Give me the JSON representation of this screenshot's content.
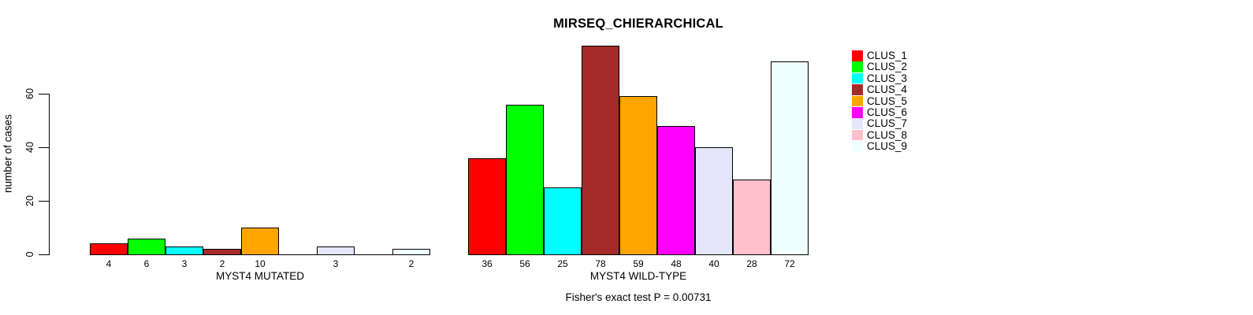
{
  "chart_data": {
    "type": "bar",
    "title": "MIRSEQ_CHIERARCHICAL",
    "ylabel": "number of cases",
    "annotation": "Fisher's exact test P = 0.00731",
    "yticks": [
      0,
      20,
      40,
      60
    ],
    "ylim": [
      0,
      78
    ],
    "grid": false,
    "legend_position": "right",
    "clusters": [
      {
        "label": "CLUS_1",
        "color": "#FF0000"
      },
      {
        "label": "CLUS_2",
        "color": "#00FF00"
      },
      {
        "label": "CLUS_3",
        "color": "#00FFFF"
      },
      {
        "label": "CLUS_4",
        "color": "#A52A2A"
      },
      {
        "label": "CLUS_5",
        "color": "#FFA500"
      },
      {
        "label": "CLUS_6",
        "color": "#FF00FF"
      },
      {
        "label": "CLUS_7",
        "color": "#E6E6FA"
      },
      {
        "label": "CLUS_8",
        "color": "#FFC0CB"
      },
      {
        "label": "CLUS_9",
        "color": "#F0FFFF"
      }
    ],
    "groups": [
      {
        "label": "MYST4 MUTATED",
        "values": [
          4,
          6,
          3,
          2,
          10,
          0,
          3,
          0,
          2
        ]
      },
      {
        "label": "MYST4 WILD-TYPE",
        "values": [
          36,
          56,
          25,
          78,
          59,
          48,
          40,
          28,
          72
        ]
      }
    ]
  },
  "colors": {
    "background": "#FFFFFF",
    "axis": "#000000",
    "bar_border": "#000000",
    "text": "#000000"
  }
}
